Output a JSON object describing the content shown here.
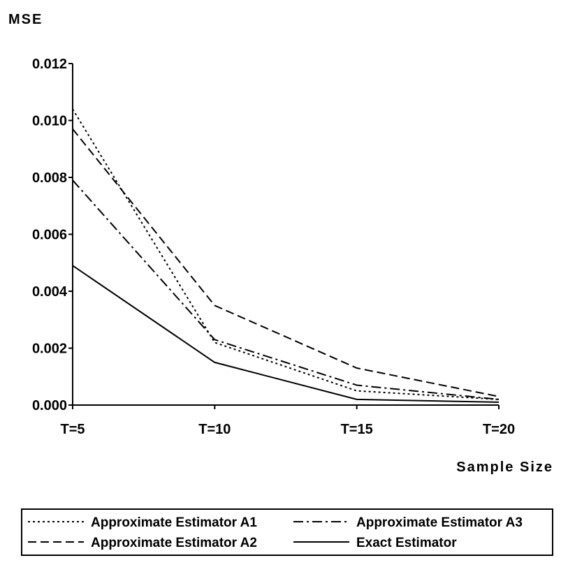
{
  "chart_data": {
    "type": "line",
    "title": "",
    "ylabel": "MSE",
    "xlabel": "Sample Size",
    "categories": [
      "T=5",
      "T=10",
      "T=15",
      "T=20"
    ],
    "ylim": [
      0,
      0.012
    ],
    "yticks": [
      "0.000",
      "0.002",
      "0.004",
      "0.006",
      "0.008",
      "0.010",
      "0.012"
    ],
    "grid": false,
    "legend_position": "bottom",
    "series": [
      {
        "name": "Approximate Estimator A1",
        "style": "dotted",
        "values": [
          0.0104,
          0.0022,
          0.0005,
          0.0002
        ]
      },
      {
        "name": "Approximate Estimator A2",
        "style": "dashed",
        "values": [
          0.0097,
          0.0035,
          0.0013,
          0.0003
        ]
      },
      {
        "name": "Approximate Estimator A3",
        "style": "dashdot",
        "values": [
          0.0079,
          0.0023,
          0.0007,
          0.0002
        ]
      },
      {
        "name": "Exact Estimator",
        "style": "solid",
        "values": [
          0.0049,
          0.0015,
          0.0002,
          0.0001
        ]
      }
    ]
  }
}
